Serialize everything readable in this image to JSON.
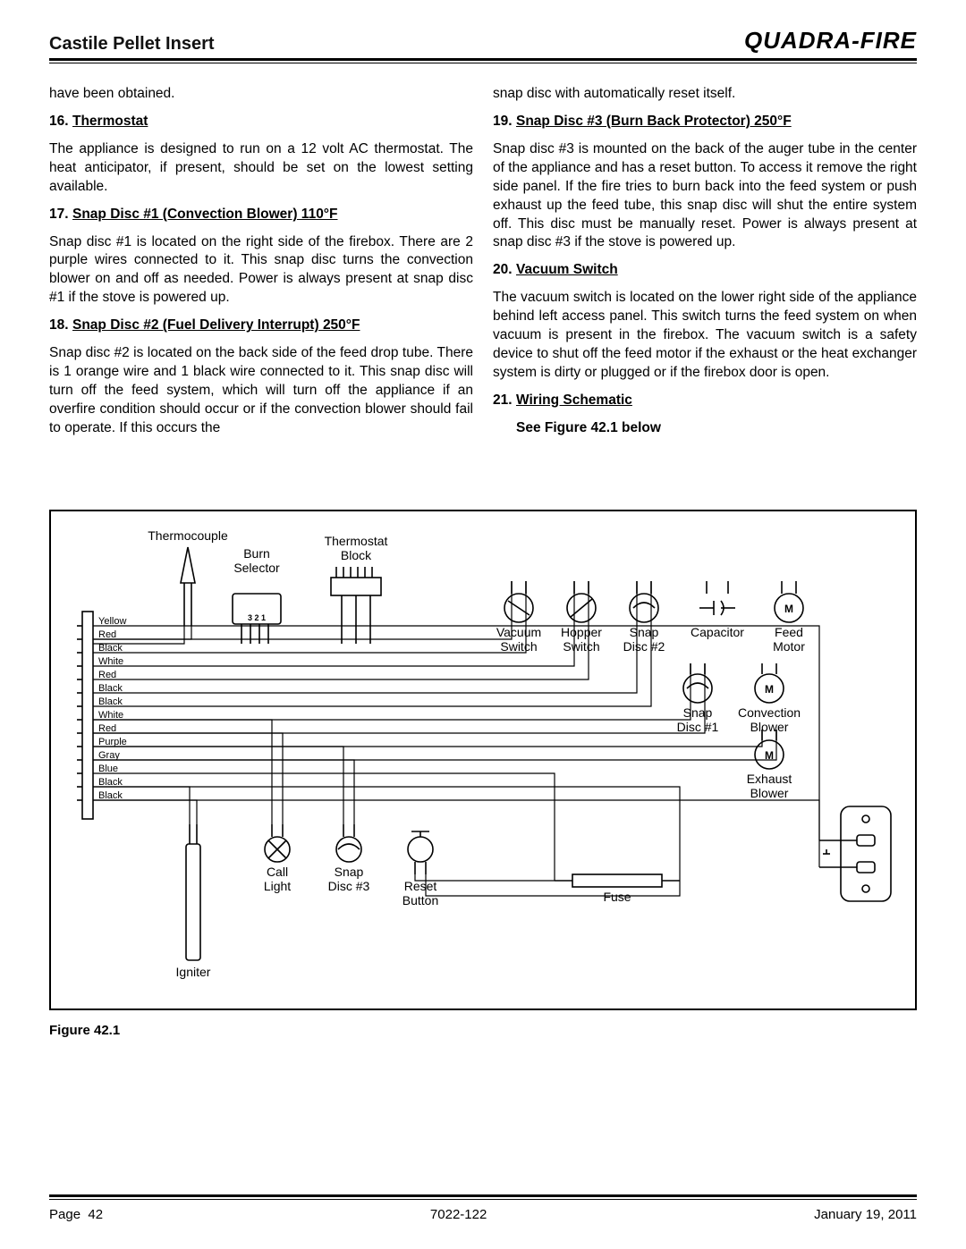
{
  "header": {
    "title": "Castile Pellet Insert",
    "brand": "QUADRA-FIRE"
  },
  "left": {
    "continuation": "have been obtained.",
    "s16_num": "16.",
    "s16_title": "Thermostat",
    "s16_body": "The appliance is designed to run on a 12 volt AC thermostat. The heat anticipator, if present, should be set on the lowest setting available.",
    "s17_num": "17.",
    "s17_title": "Snap Disc #1 (Convection Blower) 110°F",
    "s17_body": "Snap disc #1 is located on the right side of the firebox. There are 2 purple wires connected to it. This snap disc turns the convection blower on and off as needed. Power is always present at snap disc #1 if the stove is powered up.",
    "s18_num": "18.",
    "s18_title": "Snap Disc #2 (Fuel Delivery Interrupt) 250°F",
    "s18_body": "Snap disc #2 is located on the back side of the feed drop tube. There is 1 orange wire and 1 black wire connected to it. This snap disc will turn off the feed system, which will turn off the appliance if an overfire condition should occur or if the convection blower should fail to operate. If this occurs the"
  },
  "right": {
    "continuation": "snap disc with automatically reset itself.",
    "s19_num": "19.",
    "s19_title": "Snap Disc #3 (Burn Back Protector) 250°F",
    "s19_body": "Snap disc #3 is mounted on the back of the auger tube in the center of the appliance and has a reset button. To access it remove the right side panel. If the fire tries to burn back into the feed system or push exhaust up the feed tube, this snap disc will shut the entire system off. This disc must be manually reset. Power is always present at snap disc #3 if the stove is powered up.",
    "s20_num": "20.",
    "s20_title": "Vacuum Switch",
    "s20_body": "The vacuum switch is located on the lower right side of the appliance behind left access panel. This switch turns the feed system on when vacuum is present in the firebox. The vacuum switch is a safety device to shut off the feed motor if the exhaust or the heat exchanger system is dirty or plugged or if the firebox door is open.",
    "s21_num": "21.",
    "s21_title": "Wiring Schematic",
    "s21_see": "See Figure 42.1 below"
  },
  "figure": {
    "caption": "Figure 42.1",
    "labels": {
      "thermocouple": "Thermocouple",
      "burn_selector1": "Burn",
      "burn_selector2": "Selector",
      "thermostat_block1": "Thermostat",
      "thermostat_block2": "Block",
      "vacuum1": "Vacuum",
      "vacuum2": "Switch",
      "hopper1": "Hopper",
      "hopper2": "Switch",
      "snap2a": "Snap",
      "snap2b": "Disc #2",
      "capacitor": "Capacitor",
      "feed1": "Feed",
      "feed2": "Motor",
      "snap1a": "Snap",
      "snap1b": "Disc #1",
      "conv1": "Convection",
      "conv2": "Blower",
      "exh1": "Exhaust",
      "exh2": "Blower",
      "call1": "Call",
      "call2": "Light",
      "snap3a": "Snap",
      "snap3b": "Disc #3",
      "reset1": "Reset",
      "reset2": "Button",
      "fuse": "Fuse",
      "igniter": "Igniter",
      "s321": "3 2 1"
    },
    "wire_colors": [
      "Yellow",
      "Red",
      "Black",
      "White",
      "Red",
      "Black",
      "Black",
      "White",
      "Red",
      "Purple",
      "Gray",
      "Blue",
      "Black",
      "Black"
    ]
  },
  "footer": {
    "page_label": "Page",
    "page_num": "42",
    "doc_num": "7022-122",
    "date": "January 19, 2011"
  }
}
